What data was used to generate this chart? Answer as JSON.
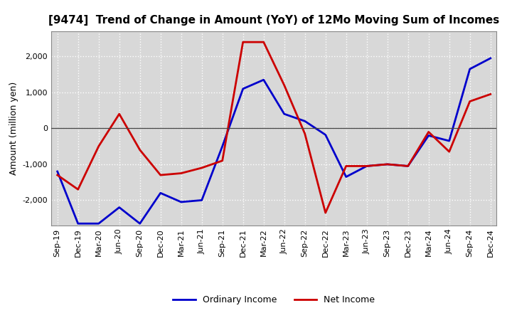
{
  "title": "[9474]  Trend of Change in Amount (YoY) of 12Mo Moving Sum of Incomes",
  "ylabel": "Amount (million yen)",
  "x_labels": [
    "Sep-19",
    "Dec-19",
    "Mar-20",
    "Jun-20",
    "Sep-20",
    "Dec-20",
    "Mar-21",
    "Jun-21",
    "Sep-21",
    "Dec-21",
    "Mar-22",
    "Jun-22",
    "Sep-22",
    "Dec-22",
    "Mar-23",
    "Jun-23",
    "Sep-23",
    "Dec-23",
    "Mar-24",
    "Jun-24",
    "Sep-24",
    "Dec-24"
  ],
  "ordinary_income": [
    -1200,
    -2650,
    -2650,
    -2200,
    -2650,
    -1800,
    -2050,
    -2000,
    -500,
    1100,
    1350,
    400,
    200,
    -180,
    -1350,
    -1050,
    -1000,
    -1050,
    -200,
    -350,
    1650,
    1950
  ],
  "net_income": [
    -1300,
    -1700,
    -500,
    400,
    -600,
    -1300,
    -1250,
    -1100,
    -900,
    2400,
    2400,
    1200,
    -150,
    -2350,
    -1050,
    -1050,
    -1000,
    -1050,
    -100,
    -650,
    750,
    950
  ],
  "ordinary_color": "#0000cc",
  "net_color": "#cc0000",
  "ylim_min": -2700,
  "ylim_max": 2700,
  "yticks": [
    -2000,
    -1000,
    0,
    1000,
    2000
  ],
  "bg_color": "#ffffff",
  "plot_bg_color": "#d8d8d8",
  "grid_color": "#ffffff",
  "line_width": 2.0,
  "legend_ordinary": "Ordinary Income",
  "legend_net": "Net Income",
  "title_fontsize": 11,
  "tick_fontsize": 8,
  "ylabel_fontsize": 9
}
